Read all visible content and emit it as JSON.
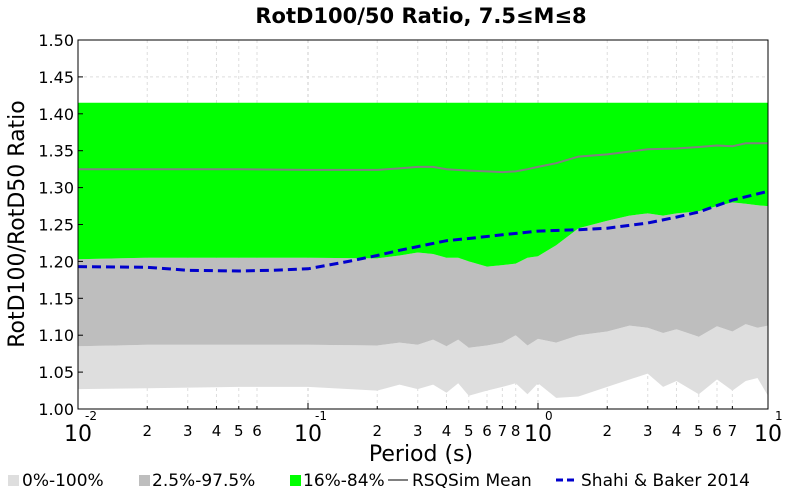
{
  "chart_data": {
    "type": "area",
    "title": "RotD100/50 Ratio, 7.5≤M≤8",
    "xlabel": "Period (s)",
    "ylabel": "RotD100/RotD50 Ratio",
    "x_scale": "log",
    "xlim": [
      0.01,
      10
    ],
    "ylim": [
      1.0,
      1.5
    ],
    "grid": true,
    "legend_position": "bottom",
    "y_ticks": [
      "1.00",
      "1.05",
      "1.10",
      "1.15",
      "1.20",
      "1.25",
      "1.30",
      "1.35",
      "1.40",
      "1.45",
      "1.50"
    ],
    "x_major_ticks": [
      {
        "value": 0.01,
        "base": "10",
        "exp": "-2"
      },
      {
        "value": 0.1,
        "base": "10",
        "exp": "-1"
      },
      {
        "value": 1,
        "base": "10",
        "exp": "0"
      },
      {
        "value": 10,
        "base": "10",
        "exp": "1"
      }
    ],
    "x_minor_ticks": [
      {
        "value": 0.02,
        "label": "2"
      },
      {
        "value": 0.03,
        "label": "3"
      },
      {
        "value": 0.04,
        "label": "4"
      },
      {
        "value": 0.05,
        "label": "5"
      },
      {
        "value": 0.06,
        "label": "6"
      },
      {
        "value": 0.2,
        "label": "2"
      },
      {
        "value": 0.3,
        "label": "3"
      },
      {
        "value": 0.4,
        "label": "4"
      },
      {
        "value": 0.5,
        "label": "5"
      },
      {
        "value": 0.6,
        "label": "6"
      },
      {
        "value": 0.7,
        "label": "7"
      },
      {
        "value": 0.8,
        "label": "8"
      },
      {
        "value": 2,
        "label": "2"
      },
      {
        "value": 3,
        "label": "3"
      },
      {
        "value": 4,
        "label": "4"
      },
      {
        "value": 5,
        "label": "5"
      },
      {
        "value": 6,
        "label": "6"
      },
      {
        "value": 7,
        "label": "7"
      }
    ],
    "series": [
      {
        "name": "0%-100%",
        "kind": "band",
        "color": "#dedede",
        "x": [
          0.01,
          0.02,
          0.05,
          0.1,
          0.2,
          0.25,
          0.3,
          0.35,
          0.4,
          0.45,
          0.5,
          0.6,
          0.7,
          0.8,
          0.9,
          1.0,
          1.2,
          1.5,
          2.0,
          2.5,
          3.0,
          3.5,
          4.0,
          5.0,
          6.0,
          7.0,
          8.0,
          9.0,
          10.0
        ],
        "lower": [
          1.027,
          1.028,
          1.03,
          1.03,
          1.025,
          1.033,
          1.027,
          1.033,
          1.022,
          1.035,
          1.018,
          1.025,
          1.03,
          1.035,
          1.02,
          1.035,
          1.015,
          1.017,
          1.03,
          1.04,
          1.048,
          1.03,
          1.038,
          1.02,
          1.04,
          1.025,
          1.038,
          1.042,
          1.018
        ],
        "upper": [
          1.085,
          1.087,
          1.087,
          1.087,
          1.086,
          1.09,
          1.087,
          1.094,
          1.085,
          1.094,
          1.083,
          1.086,
          1.09,
          1.1,
          1.086,
          1.095,
          1.09,
          1.1,
          1.105,
          1.113,
          1.11,
          1.103,
          1.108,
          1.098,
          1.112,
          1.105,
          1.115,
          1.11,
          1.113
        ]
      },
      {
        "name": "2.5%-97.5%",
        "kind": "band",
        "color": "#bebebe",
        "x": [
          0.01,
          0.02,
          0.05,
          0.1,
          0.2,
          0.25,
          0.3,
          0.35,
          0.4,
          0.45,
          0.5,
          0.6,
          0.7,
          0.8,
          0.9,
          1.0,
          1.2,
          1.5,
          2.0,
          2.5,
          3.0,
          3.5,
          4.0,
          5.0,
          6.0,
          7.0,
          8.0,
          9.0,
          10.0
        ],
        "lower": [
          1.085,
          1.087,
          1.087,
          1.087,
          1.086,
          1.09,
          1.087,
          1.094,
          1.085,
          1.094,
          1.083,
          1.086,
          1.09,
          1.1,
          1.086,
          1.095,
          1.09,
          1.1,
          1.105,
          1.113,
          1.11,
          1.103,
          1.108,
          1.098,
          1.112,
          1.105,
          1.115,
          1.11,
          1.113
        ],
        "upper": [
          1.203,
          1.205,
          1.205,
          1.205,
          1.204,
          1.208,
          1.212,
          1.21,
          1.205,
          1.205,
          1.2,
          1.193,
          1.195,
          1.197,
          1.205,
          1.207,
          1.222,
          1.245,
          1.255,
          1.262,
          1.265,
          1.262,
          1.265,
          1.268,
          1.275,
          1.28,
          1.278,
          1.276,
          1.275
        ]
      },
      {
        "name": "16%-84%",
        "kind": "band",
        "color": "#00ff00",
        "x": [
          0.01,
          0.02,
          0.05,
          0.1,
          0.2,
          0.25,
          0.3,
          0.35,
          0.4,
          0.45,
          0.5,
          0.6,
          0.7,
          0.8,
          0.9,
          1.0,
          1.2,
          1.5,
          2.0,
          2.5,
          3.0,
          3.5,
          4.0,
          5.0,
          6.0,
          7.0,
          8.0,
          9.0,
          10.0
        ],
        "lower": [
          1.203,
          1.205,
          1.205,
          1.205,
          1.204,
          1.208,
          1.212,
          1.21,
          1.205,
          1.205,
          1.2,
          1.193,
          1.195,
          1.197,
          1.205,
          1.207,
          1.222,
          1.245,
          1.255,
          1.262,
          1.265,
          1.262,
          1.265,
          1.268,
          1.275,
          1.28,
          1.278,
          1.276,
          1.275
        ],
        "upper": [
          1.415,
          1.415,
          1.415,
          1.415,
          1.415,
          1.415,
          1.415,
          1.415,
          1.415,
          1.415,
          1.415,
          1.415,
          1.415,
          1.415,
          1.415,
          1.415,
          1.415,
          1.415,
          1.415,
          1.415,
          1.415,
          1.415,
          1.415,
          1.415,
          1.415,
          1.415,
          1.415,
          1.415,
          1.415
        ]
      },
      {
        "name": "RSQSim Mean",
        "kind": "line",
        "color": "#808080",
        "x": [
          0.01,
          0.02,
          0.05,
          0.1,
          0.2,
          0.25,
          0.3,
          0.35,
          0.4,
          0.5,
          0.6,
          0.7,
          0.8,
          0.9,
          1.0,
          1.2,
          1.5,
          2.0,
          3.0,
          4.0,
          5.0,
          6.0,
          7.0,
          8.0,
          9.0,
          10.0
        ],
        "y": [
          1.325,
          1.325,
          1.325,
          1.324,
          1.324,
          1.326,
          1.328,
          1.328,
          1.325,
          1.323,
          1.322,
          1.321,
          1.322,
          1.325,
          1.328,
          1.333,
          1.342,
          1.345,
          1.352,
          1.353,
          1.355,
          1.357,
          1.356,
          1.36,
          1.36,
          1.36
        ]
      },
      {
        "name": "Shahi & Baker 2014",
        "kind": "dashed-line",
        "color": "#0000cc",
        "x": [
          0.01,
          0.02,
          0.03,
          0.05,
          0.07,
          0.1,
          0.15,
          0.2,
          0.25,
          0.3,
          0.4,
          0.5,
          0.7,
          1.0,
          1.5,
          2.0,
          3.0,
          4.0,
          5.0,
          7.0,
          10.0
        ],
        "y": [
          1.193,
          1.192,
          1.188,
          1.187,
          1.188,
          1.19,
          1.2,
          1.208,
          1.215,
          1.22,
          1.228,
          1.231,
          1.236,
          1.241,
          1.243,
          1.245,
          1.252,
          1.26,
          1.267,
          1.283,
          1.295
        ]
      }
    ]
  }
}
